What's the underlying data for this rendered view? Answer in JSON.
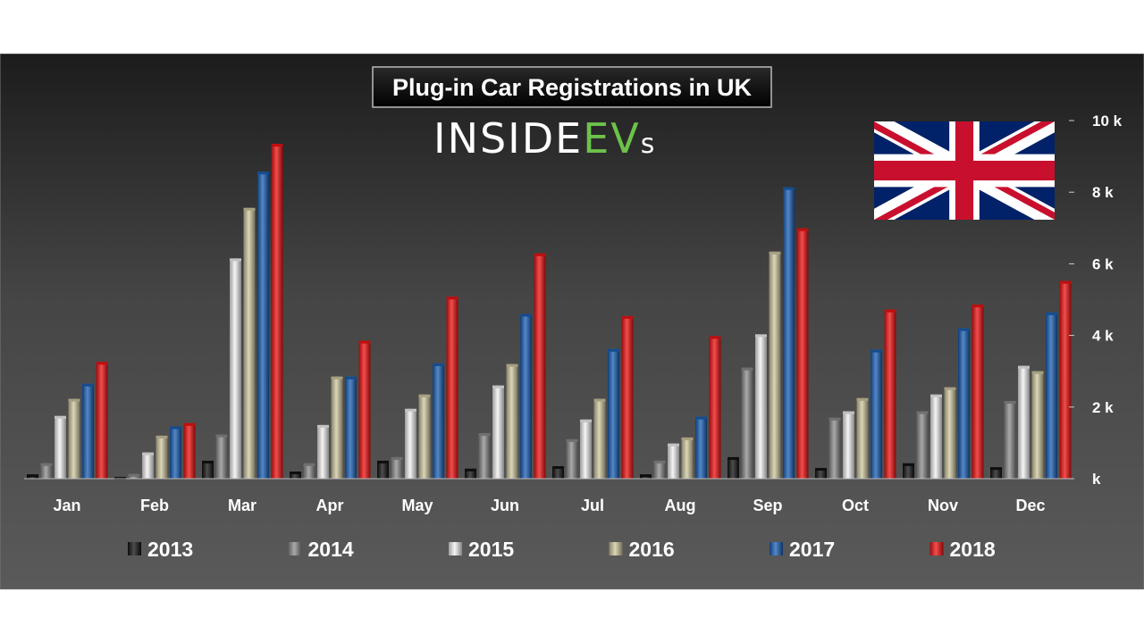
{
  "title": "Plug-in Car Registrations in UK",
  "logo": {
    "part1": "INSIDE",
    "part2": "EV",
    "part3": "s",
    "color_main": "#ffffff",
    "color_accent": "#6cc24a"
  },
  "flag": {
    "name": "uk-flag-icon",
    "blue": "#012169",
    "red": "#C8102E",
    "white": "#ffffff"
  },
  "chart_data": {
    "type": "bar",
    "categories": [
      "Jan",
      "Feb",
      "Mar",
      "Apr",
      "May",
      "Jun",
      "Jul",
      "Aug",
      "Sep",
      "Oct",
      "Nov",
      "Dec"
    ],
    "ylim": [
      0,
      10000
    ],
    "yticks": [
      0,
      2000,
      4000,
      6000,
      8000,
      10000
    ],
    "ytick_labels": [
      "k",
      "2 k",
      "4 k",
      "6 k",
      "8 k",
      "10 k"
    ],
    "axis_side": "right",
    "legend_position": "bottom",
    "grid": false,
    "series": [
      {
        "name": "2013",
        "color": "#111111",
        "values": [
          120,
          50,
          500,
          200,
          500,
          280,
          350,
          120,
          600,
          300,
          430,
          320
        ]
      },
      {
        "name": "2014",
        "color": "#8c8c8c",
        "values": [
          430,
          130,
          1230,
          430,
          600,
          1270,
          1100,
          500,
          3100,
          1700,
          1880,
          2170
        ]
      },
      {
        "name": "2015",
        "color": "#f2f2f2",
        "values": [
          1750,
          730,
          6150,
          1500,
          1950,
          2600,
          1650,
          980,
          4030,
          1880,
          2350,
          3150
        ]
      },
      {
        "name": "2016",
        "color": "#cfc8a0",
        "values": [
          2230,
          1200,
          7560,
          2850,
          2350,
          3200,
          2230,
          1150,
          6340,
          2250,
          2550,
          3000
        ]
      },
      {
        "name": "2017",
        "color": "#1a5fb4",
        "values": [
          2650,
          1460,
          8570,
          2850,
          3220,
          4600,
          3620,
          1730,
          8140,
          3600,
          4200,
          4640
        ]
      },
      {
        "name": "2018",
        "color": "#ee1111",
        "values": [
          3260,
          1550,
          9350,
          3850,
          5080,
          6290,
          4540,
          3980,
          6990,
          4720,
          4860,
          5520
        ]
      }
    ]
  }
}
